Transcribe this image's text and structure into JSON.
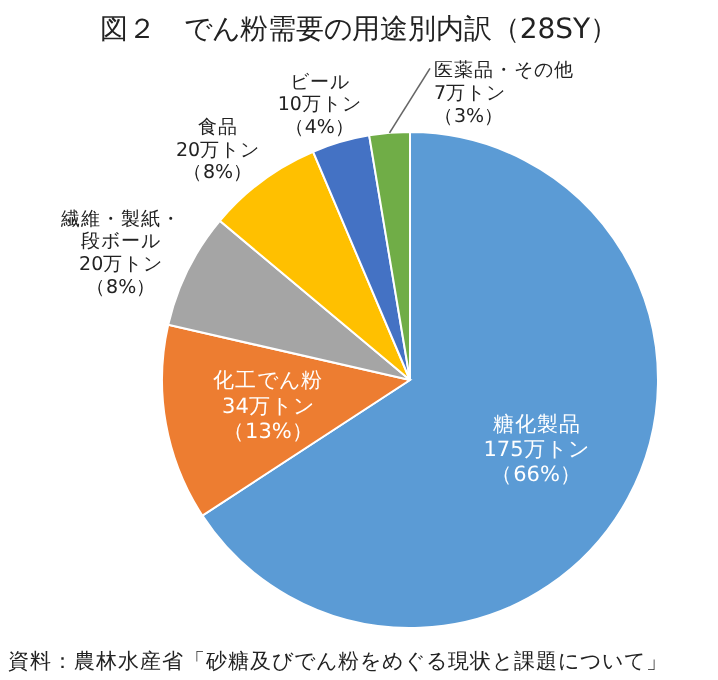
{
  "chart_data": {
    "type": "pie",
    "title": "図２　でん粉需要の用途別内訳（28SY）",
    "categories": [
      "糖化製品",
      "化工でん粉",
      "繊維・製紙・段ボール",
      "食品",
      "ビール",
      "医薬品・その他"
    ],
    "values": [
      175,
      34,
      20,
      20,
      10,
      7
    ],
    "value_labels": [
      "175万トン（66%）",
      "34万トン（13%）",
      "20万トン（8%）",
      "20万トン（8%）",
      "10万トン（4%）",
      "7万トン（3%）"
    ],
    "colors": [
      "#5b9bd5",
      "#ed7d31",
      "#a5a5a5",
      "#ffc000",
      "#4472c4",
      "#70ad47"
    ],
    "annotations": [
      "資料：農林水産省「砂糖及びでん粉をめぐる現状と課題について」"
    ],
    "legend": false
  }
}
